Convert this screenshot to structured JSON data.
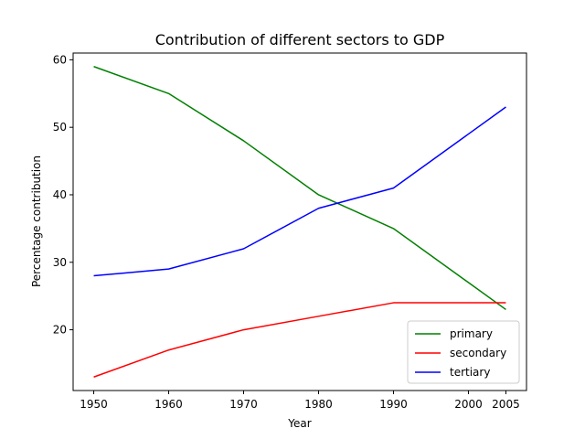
{
  "chart_data": {
    "type": "line",
    "title": "Contribution of different sectors to GDP",
    "xlabel": "Year",
    "ylabel": "Percentage contribution",
    "x": [
      1950,
      1960,
      1970,
      1980,
      1990,
      2000,
      2005
    ],
    "x_tick_labels": [
      "1950",
      "1960",
      "1970",
      "1980",
      "1990",
      "2000",
      "2005"
    ],
    "y_ticks": [
      20,
      30,
      40,
      50,
      60
    ],
    "y_tick_labels": [
      "20",
      "30",
      "40",
      "50",
      "60"
    ],
    "ylim": [
      11,
      61
    ],
    "grid": false,
    "legend_position": "lower-right",
    "series": [
      {
        "name": "primary",
        "color": "#008000",
        "values": [
          59,
          55,
          48,
          40,
          35,
          27,
          23
        ]
      },
      {
        "name": "secondary",
        "color": "#ff0000",
        "values": [
          13,
          17,
          20,
          22,
          24,
          24,
          24
        ]
      },
      {
        "name": "tertiary",
        "color": "#0000ff",
        "values": [
          28,
          29,
          32,
          38,
          41,
          49,
          53
        ]
      }
    ]
  }
}
